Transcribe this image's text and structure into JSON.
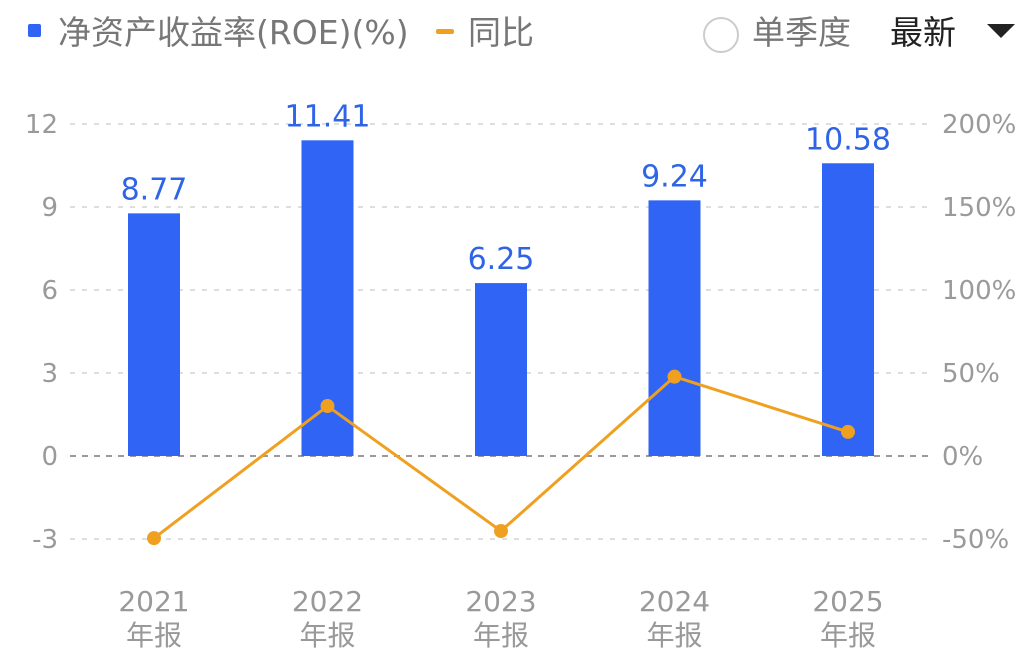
{
  "legend": {
    "bar_label": "净资产收益率(ROE)(%)",
    "line_label": "同比"
  },
  "controls": {
    "single_quarter_label": "单季度",
    "latest_label": "最新"
  },
  "colors": {
    "bar": "#2f64f5",
    "line": "#f0a020",
    "bar_label": "#2f64e6",
    "grid": "#dedede",
    "zero_line": "#9a9a9a"
  },
  "chart_data": {
    "type": "bar",
    "categories": [
      [
        "2021",
        "年报"
      ],
      [
        "2022",
        "年报"
      ],
      [
        "2023",
        "年报"
      ],
      [
        "2024",
        "年报"
      ],
      [
        "2025",
        "年报"
      ]
    ],
    "series": [
      {
        "name": "净资产收益率(ROE)(%)",
        "type": "bar",
        "axis": "left",
        "values": [
          8.77,
          11.41,
          6.25,
          9.24,
          10.58
        ]
      },
      {
        "name": "同比",
        "type": "line",
        "axis": "right",
        "values": [
          -49.5,
          30.1,
          -45.2,
          47.8,
          14.5
        ]
      }
    ],
    "data_labels": [
      "8.77",
      "11.41",
      "6.25",
      "9.24",
      "10.58"
    ],
    "y_left": {
      "ticks": [
        12,
        9,
        6,
        3,
        0,
        -3
      ],
      "tick_labels": [
        "12",
        "9",
        "6",
        "3",
        "0",
        "-3"
      ],
      "range": [
        -3,
        12
      ]
    },
    "y_right": {
      "ticks": [
        200,
        150,
        100,
        50,
        0,
        -50
      ],
      "tick_labels": [
        "200%",
        "150%",
        "100%",
        "50%",
        "0%",
        "-50%"
      ],
      "range": [
        -50,
        200
      ]
    },
    "grid": true,
    "legend_position": "top-left"
  }
}
